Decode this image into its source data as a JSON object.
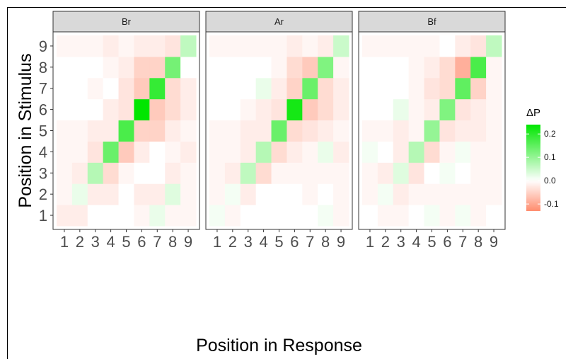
{
  "chart_data": {
    "type": "heatmap",
    "xlabel": "Position in Response",
    "ylabel": "Position in Stimulus",
    "x_categories": [
      "1",
      "2",
      "3",
      "4",
      "5",
      "6",
      "7",
      "8",
      "9"
    ],
    "y_categories": [
      "1",
      "2",
      "3",
      "4",
      "5",
      "6",
      "7",
      "8",
      "9"
    ],
    "legend": {
      "title": "ΔP",
      "placement": "right",
      "ticks": [
        "0.2",
        "0.1",
        "0.0",
        "-0.1"
      ],
      "tick_values": [
        0.2,
        0.1,
        0.0,
        -0.1
      ],
      "range": [
        -0.13,
        0.24
      ],
      "high_color": "#00e600",
      "mid_color": "#ffffff",
      "low_color": "#ff8c6e"
    },
    "panels": [
      {
        "label": "Br",
        "rows": [
          [
            -0.02,
            -0.02,
            0.0,
            0.0,
            0.0,
            -0.01,
            0.02,
            -0.01,
            -0.01
          ],
          [
            -0.01,
            0.02,
            -0.02,
            -0.02,
            0.0,
            -0.02,
            -0.02,
            0.03,
            -0.01
          ],
          [
            -0.01,
            -0.02,
            0.07,
            -0.04,
            -0.01,
            0.0,
            0.0,
            -0.02,
            -0.01
          ],
          [
            -0.01,
            -0.01,
            -0.03,
            0.14,
            -0.06,
            -0.02,
            0.0,
            -0.01,
            -0.02
          ],
          [
            -0.01,
            -0.01,
            -0.02,
            -0.02,
            0.17,
            -0.05,
            -0.05,
            -0.02,
            -0.01
          ],
          [
            0.0,
            0.0,
            0.0,
            -0.02,
            -0.03,
            0.24,
            -0.06,
            -0.04,
            -0.02
          ],
          [
            0.0,
            0.0,
            -0.01,
            0.0,
            -0.03,
            -0.06,
            0.19,
            -0.04,
            -0.02
          ],
          [
            0.0,
            0.0,
            0.0,
            -0.01,
            -0.02,
            -0.05,
            -0.05,
            0.13,
            0.0
          ],
          [
            -0.01,
            -0.01,
            -0.01,
            -0.02,
            -0.01,
            -0.02,
            -0.02,
            -0.03,
            0.06
          ]
        ]
      },
      {
        "label": "Ar",
        "rows": [
          [
            0.01,
            -0.01,
            0.0,
            0.0,
            0.0,
            0.0,
            0.0,
            0.01,
            -0.01
          ],
          [
            -0.01,
            0.01,
            -0.02,
            0.0,
            0.0,
            0.0,
            -0.01,
            0.0,
            -0.01
          ],
          [
            -0.01,
            -0.02,
            0.06,
            -0.04,
            -0.01,
            -0.01,
            -0.01,
            -0.01,
            -0.01
          ],
          [
            -0.01,
            -0.01,
            -0.02,
            0.07,
            -0.04,
            -0.02,
            -0.01,
            0.02,
            -0.02
          ],
          [
            -0.01,
            -0.01,
            -0.02,
            -0.02,
            0.14,
            -0.04,
            -0.03,
            -0.02,
            -0.01
          ],
          [
            0.0,
            0.0,
            -0.01,
            -0.02,
            -0.03,
            0.22,
            -0.06,
            -0.04,
            -0.02
          ],
          [
            0.0,
            0.0,
            0.0,
            0.02,
            -0.02,
            -0.05,
            0.14,
            -0.04,
            -0.02
          ],
          [
            0.0,
            0.0,
            0.0,
            0.0,
            -0.01,
            -0.04,
            -0.06,
            0.12,
            -0.01
          ],
          [
            -0.01,
            -0.01,
            -0.01,
            -0.01,
            -0.01,
            -0.02,
            -0.01,
            -0.02,
            0.05
          ]
        ]
      },
      {
        "label": "Bf",
        "rows": [
          [
            0.0,
            -0.01,
            -0.01,
            0.0,
            0.01,
            -0.01,
            0.01,
            -0.01,
            0.0
          ],
          [
            -0.01,
            0.01,
            -0.02,
            -0.01,
            -0.01,
            -0.01,
            -0.01,
            -0.01,
            -0.01
          ],
          [
            -0.01,
            -0.02,
            0.03,
            -0.03,
            0.0,
            0.01,
            0.0,
            -0.01,
            -0.01
          ],
          [
            0.01,
            0.0,
            -0.02,
            0.07,
            -0.04,
            -0.01,
            0.01,
            -0.01,
            -0.01
          ],
          [
            -0.01,
            -0.01,
            -0.02,
            -0.01,
            0.1,
            -0.03,
            -0.02,
            -0.02,
            -0.01
          ],
          [
            0.0,
            0.0,
            0.02,
            -0.01,
            -0.02,
            0.12,
            -0.03,
            -0.02,
            -0.01
          ],
          [
            0.0,
            0.0,
            0.0,
            -0.01,
            -0.03,
            -0.04,
            0.15,
            -0.05,
            -0.01
          ],
          [
            0.0,
            0.0,
            0.0,
            -0.01,
            -0.02,
            -0.04,
            -0.09,
            0.17,
            -0.01
          ],
          [
            -0.01,
            -0.01,
            -0.01,
            -0.01,
            -0.01,
            0.0,
            -0.02,
            -0.03,
            0.06
          ]
        ]
      }
    ]
  }
}
